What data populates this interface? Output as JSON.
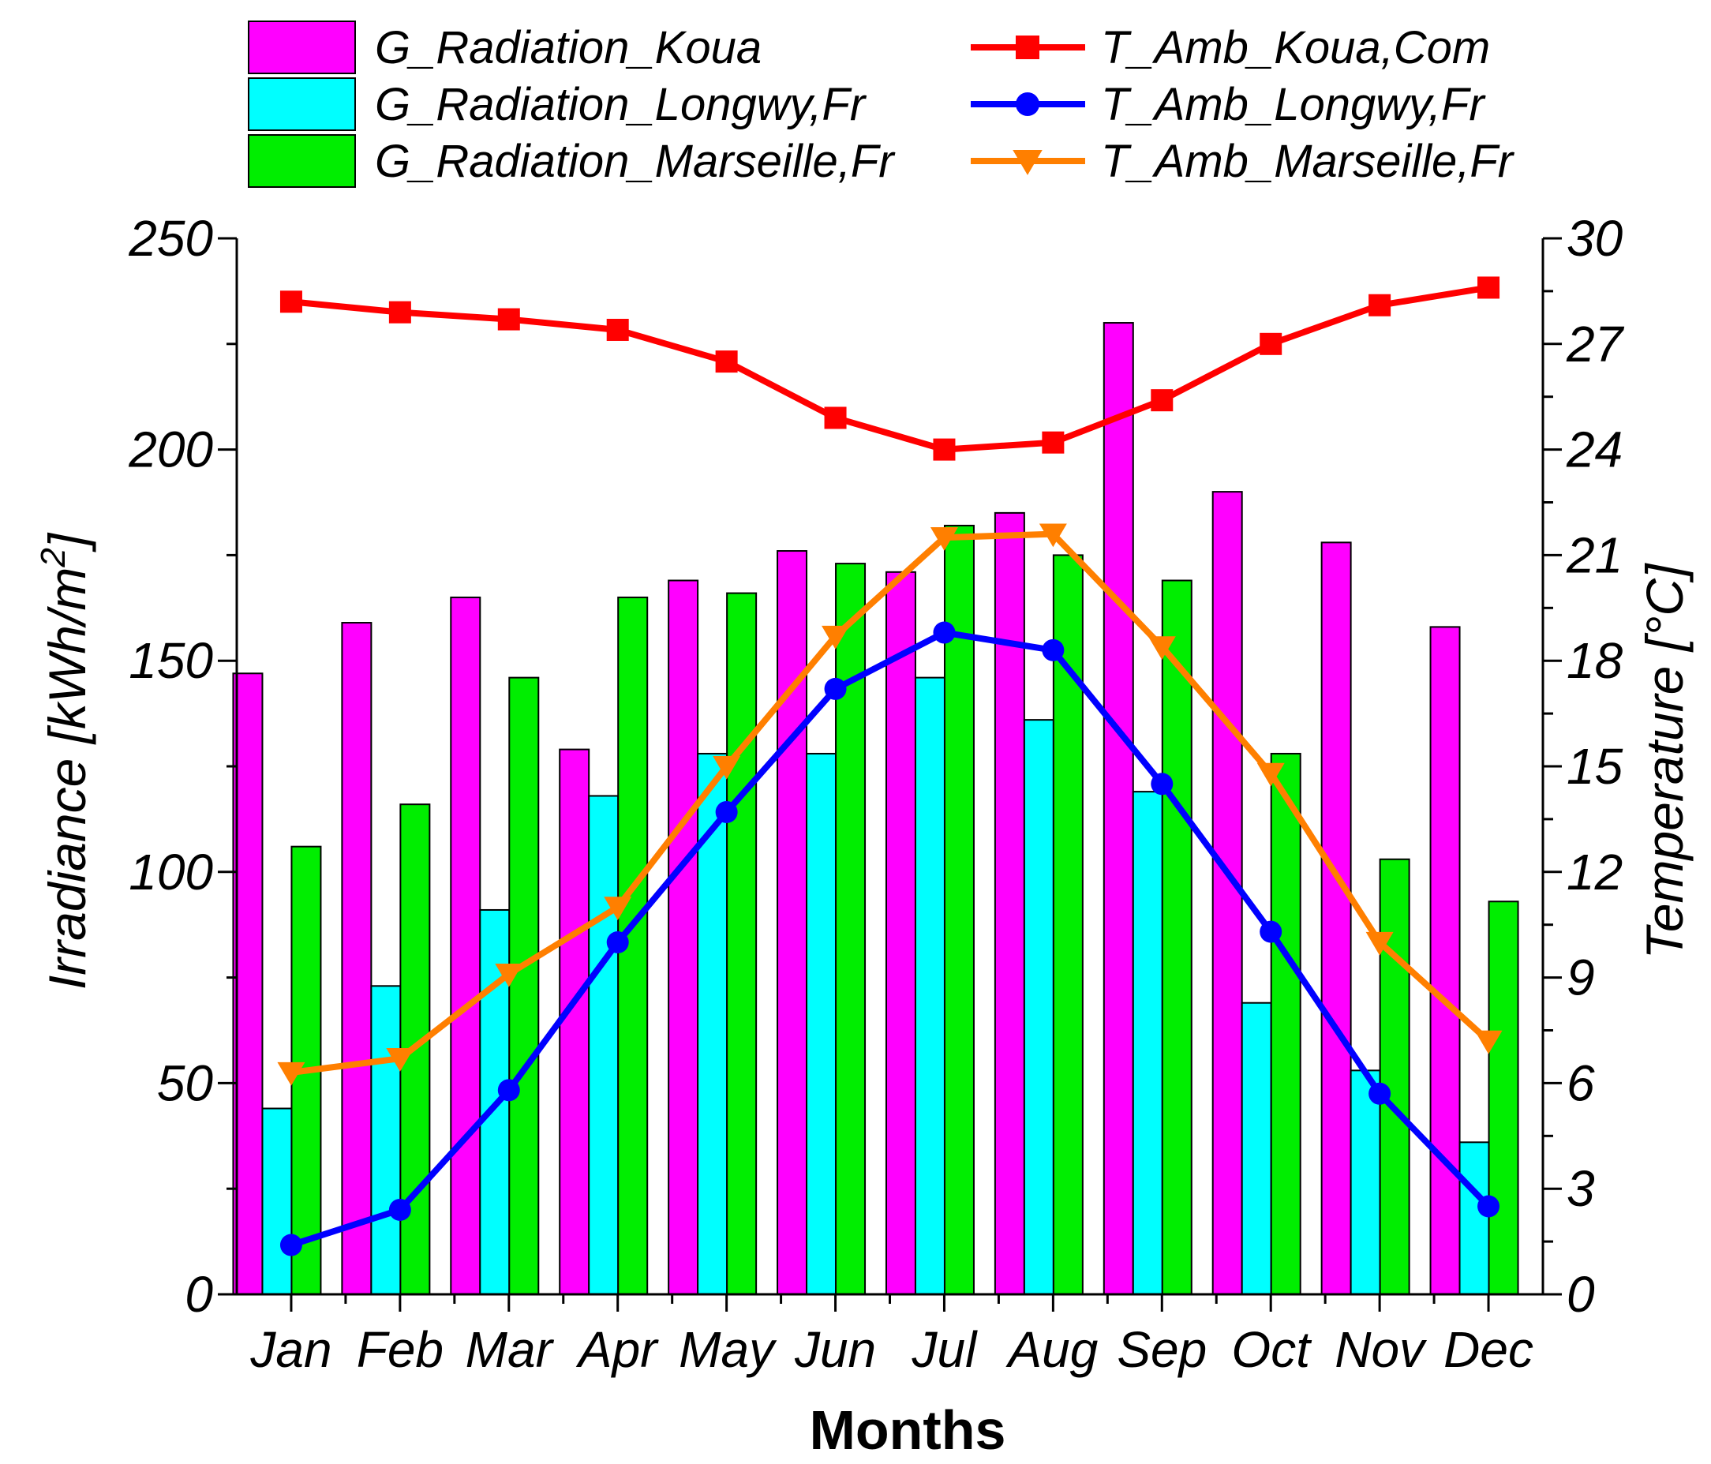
{
  "chart_data": {
    "type": "bar",
    "categories": [
      "Jan",
      "Feb",
      "Mar",
      "Apr",
      "May",
      "Jun",
      "Jul",
      "Aug",
      "Sep",
      "Oct",
      "Nov",
      "Dec"
    ],
    "xlabel": "Months",
    "ylabel": "Irradiance [kWh/m",
    "ylabel_sup": "2",
    "ylabel_close": "]",
    "y2label": "Temperature [°C]",
    "ylim": [
      0,
      250
    ],
    "yticks": [
      "0",
      "50",
      "100",
      "150",
      "200",
      "250"
    ],
    "y2lim": [
      0,
      30
    ],
    "y2ticks": [
      "0",
      "3",
      "6",
      "9",
      "12",
      "15",
      "18",
      "21",
      "24",
      "27",
      "30"
    ],
    "legend_position": "top",
    "bar_series": [
      {
        "name": "G_Radiation_Koua",
        "color": "#ff00ff",
        "values": [
          147,
          159,
          165,
          129,
          169,
          176,
          171,
          185,
          230,
          190,
          178,
          158
        ]
      },
      {
        "name": "G_Radiation_Longwy,Fr",
        "color": "#00ffff",
        "values": [
          44,
          73,
          91,
          118,
          128,
          128,
          146,
          136,
          119,
          69,
          53,
          36
        ]
      },
      {
        "name": "G_Radiation_Marseille,Fr",
        "color": "#00ee00",
        "values": [
          106,
          116,
          146,
          165,
          166,
          173,
          182,
          175,
          169,
          128,
          103,
          93
        ]
      }
    ],
    "line_series": [
      {
        "name": "T_Amb_Koua,Com",
        "color": "#ff0000",
        "marker": "square",
        "axis": "right",
        "values": [
          28.2,
          27.9,
          27.7,
          27.4,
          26.5,
          24.9,
          24.0,
          24.2,
          25.4,
          27.0,
          28.1,
          28.6
        ]
      },
      {
        "name": "T_Amb_Longwy,Fr",
        "color": "#0000ff",
        "marker": "circle",
        "axis": "right",
        "values": [
          1.4,
          2.4,
          5.8,
          10.0,
          13.7,
          17.2,
          18.8,
          18.3,
          14.5,
          10.3,
          5.7,
          2.5
        ]
      },
      {
        "name": "T_Amb_Marseille,Fr",
        "color": "#ff7f00",
        "marker": "triangle-down",
        "axis": "right",
        "values": [
          6.3,
          6.7,
          9.1,
          11.0,
          15.0,
          18.7,
          21.5,
          21.6,
          18.4,
          14.8,
          10.0,
          7.2
        ]
      }
    ]
  }
}
